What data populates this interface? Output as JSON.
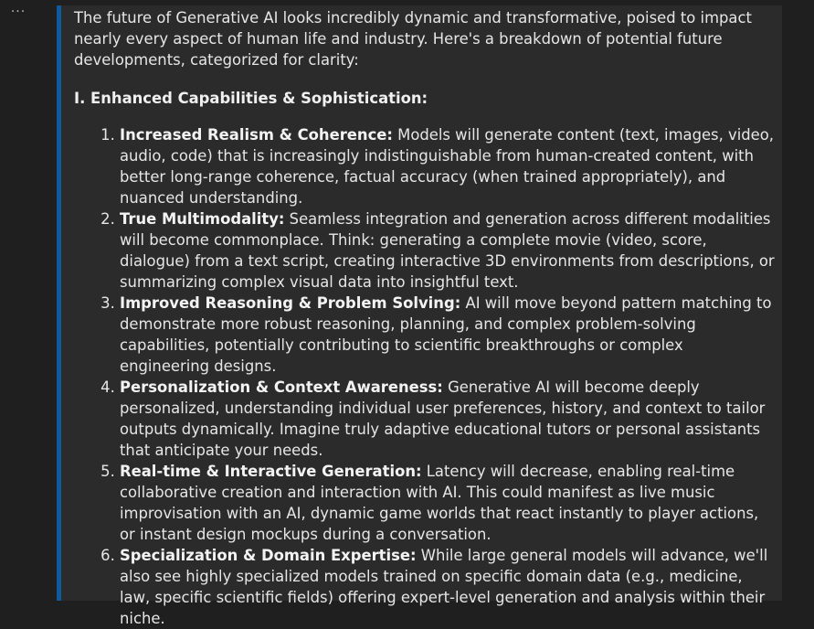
{
  "toolbar": {
    "more_icon": "more-horizontal-icon",
    "more_label": "···"
  },
  "colors": {
    "background": "#1f1f1f",
    "panel": "#2b2b2b",
    "accent": "#0e5a9c",
    "text": "#e6e6e6"
  },
  "message": {
    "intro": "The future of Generative AI looks incredibly dynamic and transformative, poised to impact nearly every aspect of human life and industry. Here's a breakdown of potential future developments, categorized for clarity:",
    "section_heading": "I. Enhanced Capabilities & Sophistication:",
    "items": [
      {
        "title": "Increased Realism & Coherence:",
        "text": " Models will generate content (text, images, video, audio, code) that is increasingly indistinguishable from human-created content, with better long-range coherence, factual accuracy (when trained appropriately), and nuanced understanding."
      },
      {
        "title": "True Multimodality:",
        "text": " Seamless integration and generation across different modalities will become commonplace. Think: generating a complete movie (video, score, dialogue) from a text script, creating interactive 3D environments from descriptions, or summarizing complex visual data into insightful text."
      },
      {
        "title": "Improved Reasoning & Problem Solving:",
        "text": " AI will move beyond pattern matching to demonstrate more robust reasoning, planning, and complex problem-solving capabilities, potentially contributing to scientific breakthroughs or complex engineering designs."
      },
      {
        "title": "Personalization & Context Awareness:",
        "text": " Generative AI will become deeply personalized, understanding individual user preferences, history, and context to tailor outputs dynamically. Imagine truly adaptive educational tutors or personal assistants that anticipate your needs."
      },
      {
        "title": "Real-time & Interactive Generation:",
        "text": " Latency will decrease, enabling real-time collaborative creation and interaction with AI. This could manifest as live music improvisation with an AI, dynamic game worlds that react instantly to player actions, or instant design mockups during a conversation."
      },
      {
        "title": "Specialization & Domain Expertise:",
        "text": " While large general models will advance, we'll also see highly specialized models trained on specific domain data (e.g., medicine, law, specific scientific fields) offering expert-level generation and analysis within their niche."
      }
    ]
  }
}
